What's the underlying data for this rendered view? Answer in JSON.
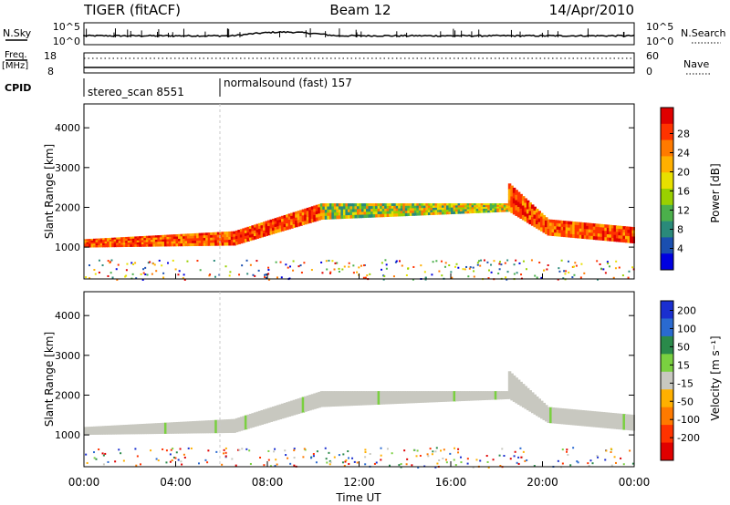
{
  "header": {
    "title_left": "TIGER (fitACF)",
    "title_center": "Beam 12",
    "title_right": "14/Apr/2010"
  },
  "top_panels": {
    "nsky_label": "N.Sky",
    "nsky_ticks": [
      "10^5",
      "10^0"
    ],
    "nsearch_label": "N.Search",
    "nsearch_ticks": [
      "10^5",
      "10^0"
    ],
    "freq_label": "Freq.",
    "freq_unit": "[MHz]",
    "freq_ticks": [
      "18",
      "8"
    ],
    "nave_label": "Nave",
    "nave_ticks": [
      "60",
      "0"
    ],
    "cpid_label": "CPID",
    "cpid_segments": [
      {
        "label": "stereo_scan 8551",
        "start_hour": 0,
        "end_hour": 6
      },
      {
        "label": "normalsound (fast) 157",
        "start_hour": 6,
        "end_hour": 24
      }
    ]
  },
  "chart_data": [
    {
      "type": "heatmap",
      "name": "power",
      "ylabel": "Slant Range [km]",
      "xlabel": "Time UT",
      "xlim": [
        0,
        24
      ],
      "ylim": [
        200,
        4600
      ],
      "y_ticks": [
        1000,
        2000,
        3000,
        4000
      ],
      "colorbar": {
        "label": "Power [dB]",
        "ticks": [
          "28",
          "24",
          "20",
          "16",
          "12",
          "8",
          "4"
        ],
        "colors": [
          "#e00000",
          "#ff3300",
          "#ff7a00",
          "#ffb000",
          "#e8e000",
          "#9ad000",
          "#4bb04b",
          "#2a8a7a",
          "#1a4fb0",
          "#0000e0"
        ]
      },
      "echo_bands": [
        {
          "from_hour": 0,
          "to_hour": 6.5,
          "range_start": [
            1200,
            1000
          ],
          "range_end": [
            1400,
            1050
          ],
          "level": "high"
        },
        {
          "from_hour": 6.5,
          "to_hour": 10.3,
          "range_start": [
            1400,
            1050
          ],
          "range_end": [
            2100,
            1700
          ],
          "level": "high"
        },
        {
          "from_hour": 10.3,
          "to_hour": 18.5,
          "range_start": [
            2100,
            1700
          ],
          "range_end": [
            2100,
            1900
          ],
          "level": "mid"
        },
        {
          "from_hour": 18.5,
          "to_hour": 20.2,
          "range_start": [
            2600,
            1900
          ],
          "range_end": [
            1700,
            1300
          ],
          "level": "high"
        },
        {
          "from_hour": 20.2,
          "to_hour": 24,
          "range_start": [
            1700,
            1300
          ],
          "range_end": [
            1500,
            1100
          ],
          "level": "high"
        }
      ]
    },
    {
      "type": "heatmap",
      "name": "velocity",
      "ylabel": "Slant Range [km]",
      "xlabel": "Time UT",
      "xlim": [
        0,
        24
      ],
      "ylim": [
        200,
        4600
      ],
      "x_ticks": [
        "00:00",
        "04:00",
        "08:00",
        "12:00",
        "16:00",
        "20:00",
        "00:00"
      ],
      "y_ticks": [
        1000,
        2000,
        3000,
        4000
      ],
      "colorbar": {
        "label": "Velocity [m s⁻¹]",
        "ticks": [
          "200",
          "100",
          "50",
          "15",
          "-15",
          "-50",
          "-100",
          "-200"
        ],
        "colors": [
          "#1a2fd0",
          "#2a6ad0",
          "#2a8a4a",
          "#7ad040",
          "#c8c8c0",
          "#ffb000",
          "#ff7a00",
          "#ff3300",
          "#e00000"
        ]
      }
    }
  ]
}
